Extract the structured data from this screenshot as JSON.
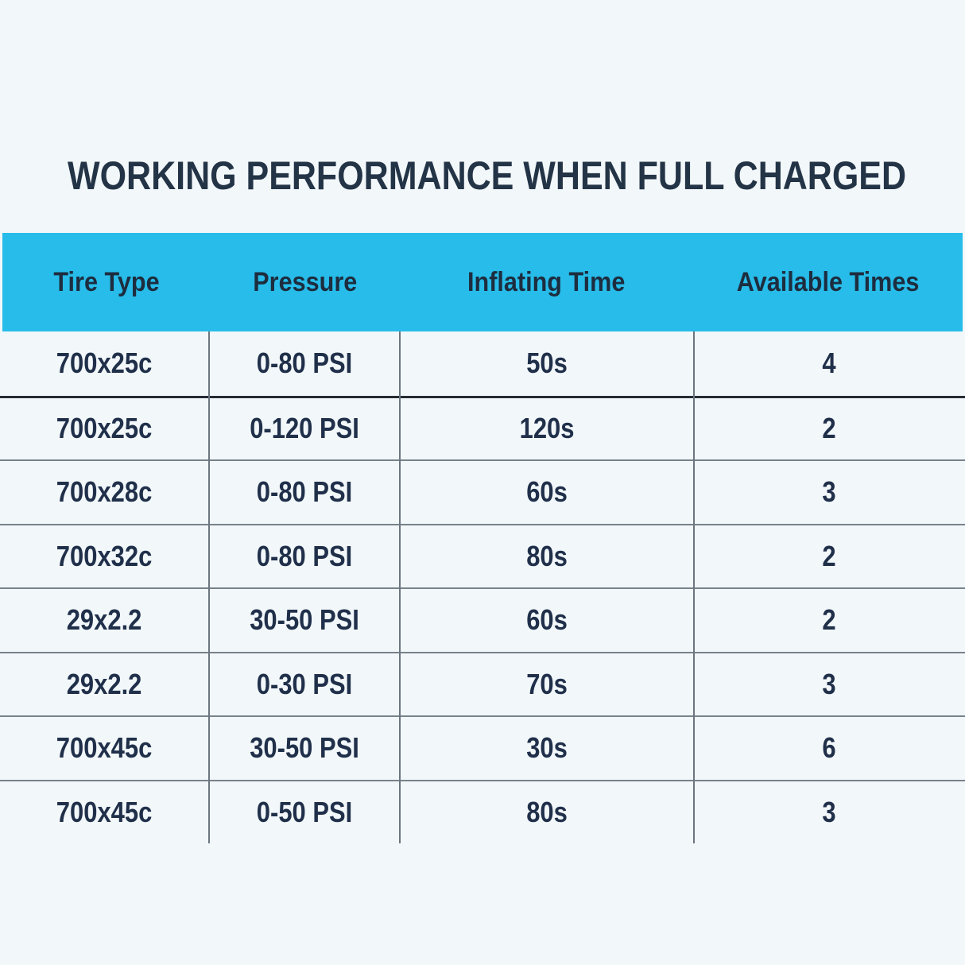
{
  "chart_data": {
    "type": "table",
    "title": "WORKING PERFORMANCE WHEN FULL CHARGED",
    "columns": [
      "Tire Type",
      "Pressure",
      "Inflating Time",
      "Available Times"
    ],
    "rows": [
      [
        "700x25c",
        "0-80 PSI",
        "50s",
        "4"
      ],
      [
        "700x25c",
        "0-120 PSI",
        "120s",
        "2"
      ],
      [
        "700x28c",
        "0-80 PSI",
        "60s",
        "3"
      ],
      [
        "700x32c",
        "0-80 PSI",
        "80s",
        "2"
      ],
      [
        "29x2.2",
        "30-50 PSI",
        "60s",
        "2"
      ],
      [
        "29x2.2",
        "0-30 PSI",
        "70s",
        "3"
      ],
      [
        "700x45c",
        "30-50 PSI",
        "30s",
        "6"
      ],
      [
        "700x45c",
        "0-50 PSI",
        "80s",
        "3"
      ]
    ],
    "layout": {
      "header_position": "top",
      "grid": "inner lines only, no outer border, no line below last row",
      "first_row_separator": "darker than others"
    }
  },
  "colors": {
    "background": "#f2f7fa",
    "header_bg": "#27bce9",
    "header_text": "#1d2d3f",
    "title_text": "#243447",
    "cell_text": "#20304a",
    "grid_line": "#6b7680",
    "row_separator": "#78828b",
    "first_row_separator": "#262c33"
  }
}
